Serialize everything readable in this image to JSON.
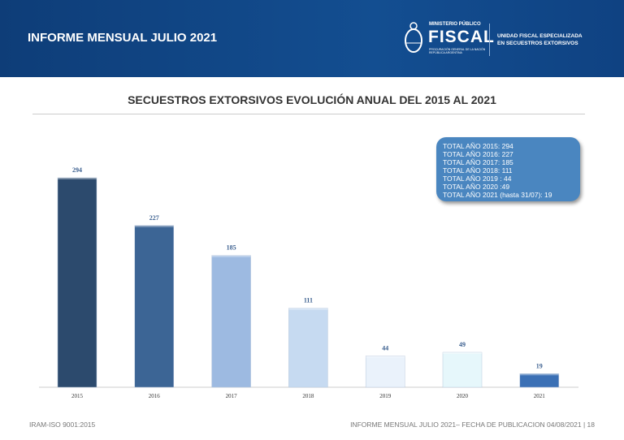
{
  "header": {
    "title": "INFORME MENSUAL JULIO 2021",
    "logo": {
      "ministry": "MINISTERIO PÚBLICO",
      "name": "FISCAL",
      "sub1": "PROCURACIÓN GENERAL DE LA NACIÓN",
      "sub2": "REPÚBLICA ARGENTINA",
      "unit_line1": "UNIDAD FISCAL ESPECIALIZADA",
      "unit_line2": "EN SECUESTROS EXTORSIVOS"
    }
  },
  "chart_data": {
    "type": "bar",
    "title": "SECUESTROS EXTORSIVOS EVOLUCIÓN ANUAL DEL 2015 AL 2021",
    "categories": [
      "2015",
      "2016",
      "2017",
      "2018",
      "2019",
      "2020",
      "2021"
    ],
    "values": [
      294,
      227,
      185,
      111,
      44,
      49,
      19
    ],
    "colors": [
      "#2c4a6d",
      "#3c6595",
      "#9dbae1",
      "#c6daf1",
      "#eaf2fb",
      "#e6f7fb",
      "#3b70b5"
    ],
    "ylim": [
      0,
      300
    ],
    "grid": false,
    "annotation": [
      "TOTAL AÑO 2015: 294",
      "TOTAL AÑO 2016: 227",
      "TOTAL AÑO 2017: 185",
      "TOTAL AÑO 2018: 111",
      "TOTAL AÑO 2019 : 44",
      "TOTAL AÑO 2020 :49",
      "TOTAL AÑO 2021 (hasta 31/07): 19"
    ]
  },
  "footer": {
    "left": "IRAM-ISO 9001:2015",
    "right": "INFORME MENSUAL JULIO 2021– FECHA DE PUBLICACION  04/08/2021 | 18"
  }
}
